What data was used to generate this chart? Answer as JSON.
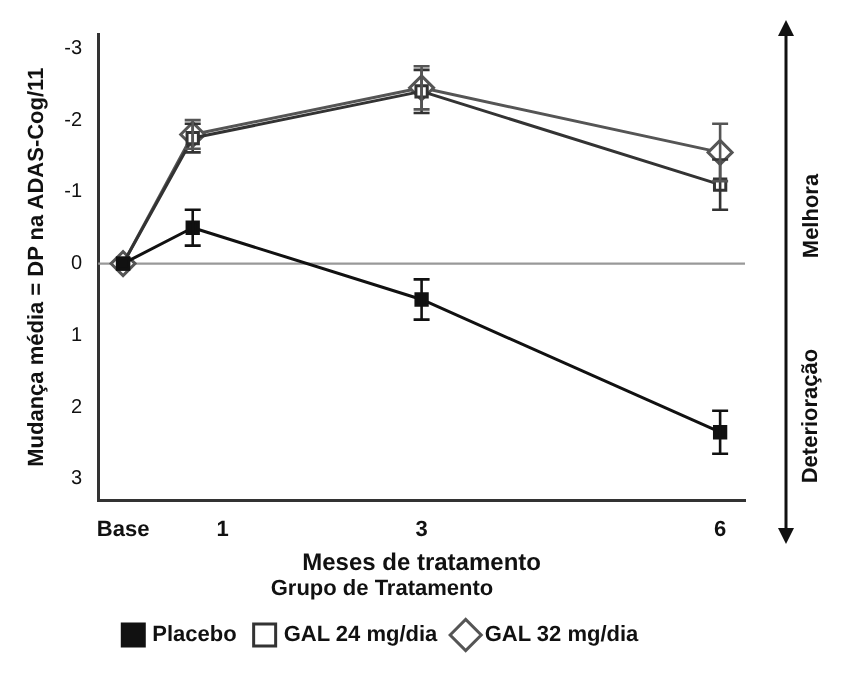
{
  "chart_data": {
    "type": "line",
    "xlabel": "Meses de tratamento",
    "ylabel": "Mudança média = DP na ADAS-Cog/11",
    "legend_title": "Grupo de Tratamento",
    "legend": "bottom",
    "xlim": [
      -0.25,
      6.25
    ],
    "xticks": [
      {
        "value": 0,
        "label": "Base"
      },
      1,
      3,
      6
    ],
    "ylim": [
      3.3,
      -3.2
    ],
    "yticks": [
      -3,
      -2,
      -1,
      0,
      1,
      2,
      3
    ],
    "grid": false,
    "series": [
      {
        "name": "Placebo",
        "color": "#111111",
        "marker": "square",
        "x": [
          0,
          0.7,
          3,
          6
        ],
        "values": [
          0,
          -0.5,
          0.5,
          2.35
        ],
        "errors": [
          null,
          0.25,
          0.28,
          0.3
        ]
      },
      {
        "name": "GAL 24 mg/dia",
        "color": "#333333",
        "marker": "square-open",
        "x": [
          0,
          0.7,
          3,
          6
        ],
        "values": [
          0,
          -1.75,
          -2.4,
          -1.1
        ],
        "errors": [
          null,
          0.2,
          0.3,
          0.35
        ]
      },
      {
        "name": "GAL 32 mg/dia",
        "color": "#555555",
        "marker": "diamond-open",
        "x": [
          0,
          0.7,
          3,
          6
        ],
        "values": [
          0,
          -1.8,
          -2.45,
          -1.55
        ],
        "errors": [
          null,
          0.2,
          0.3,
          0.4
        ]
      }
    ],
    "ref_lines": [
      {
        "axis": "y",
        "value": 0,
        "color": "#999999"
      }
    ],
    "annotations": [
      "Melhora",
      "Deterioração"
    ]
  }
}
